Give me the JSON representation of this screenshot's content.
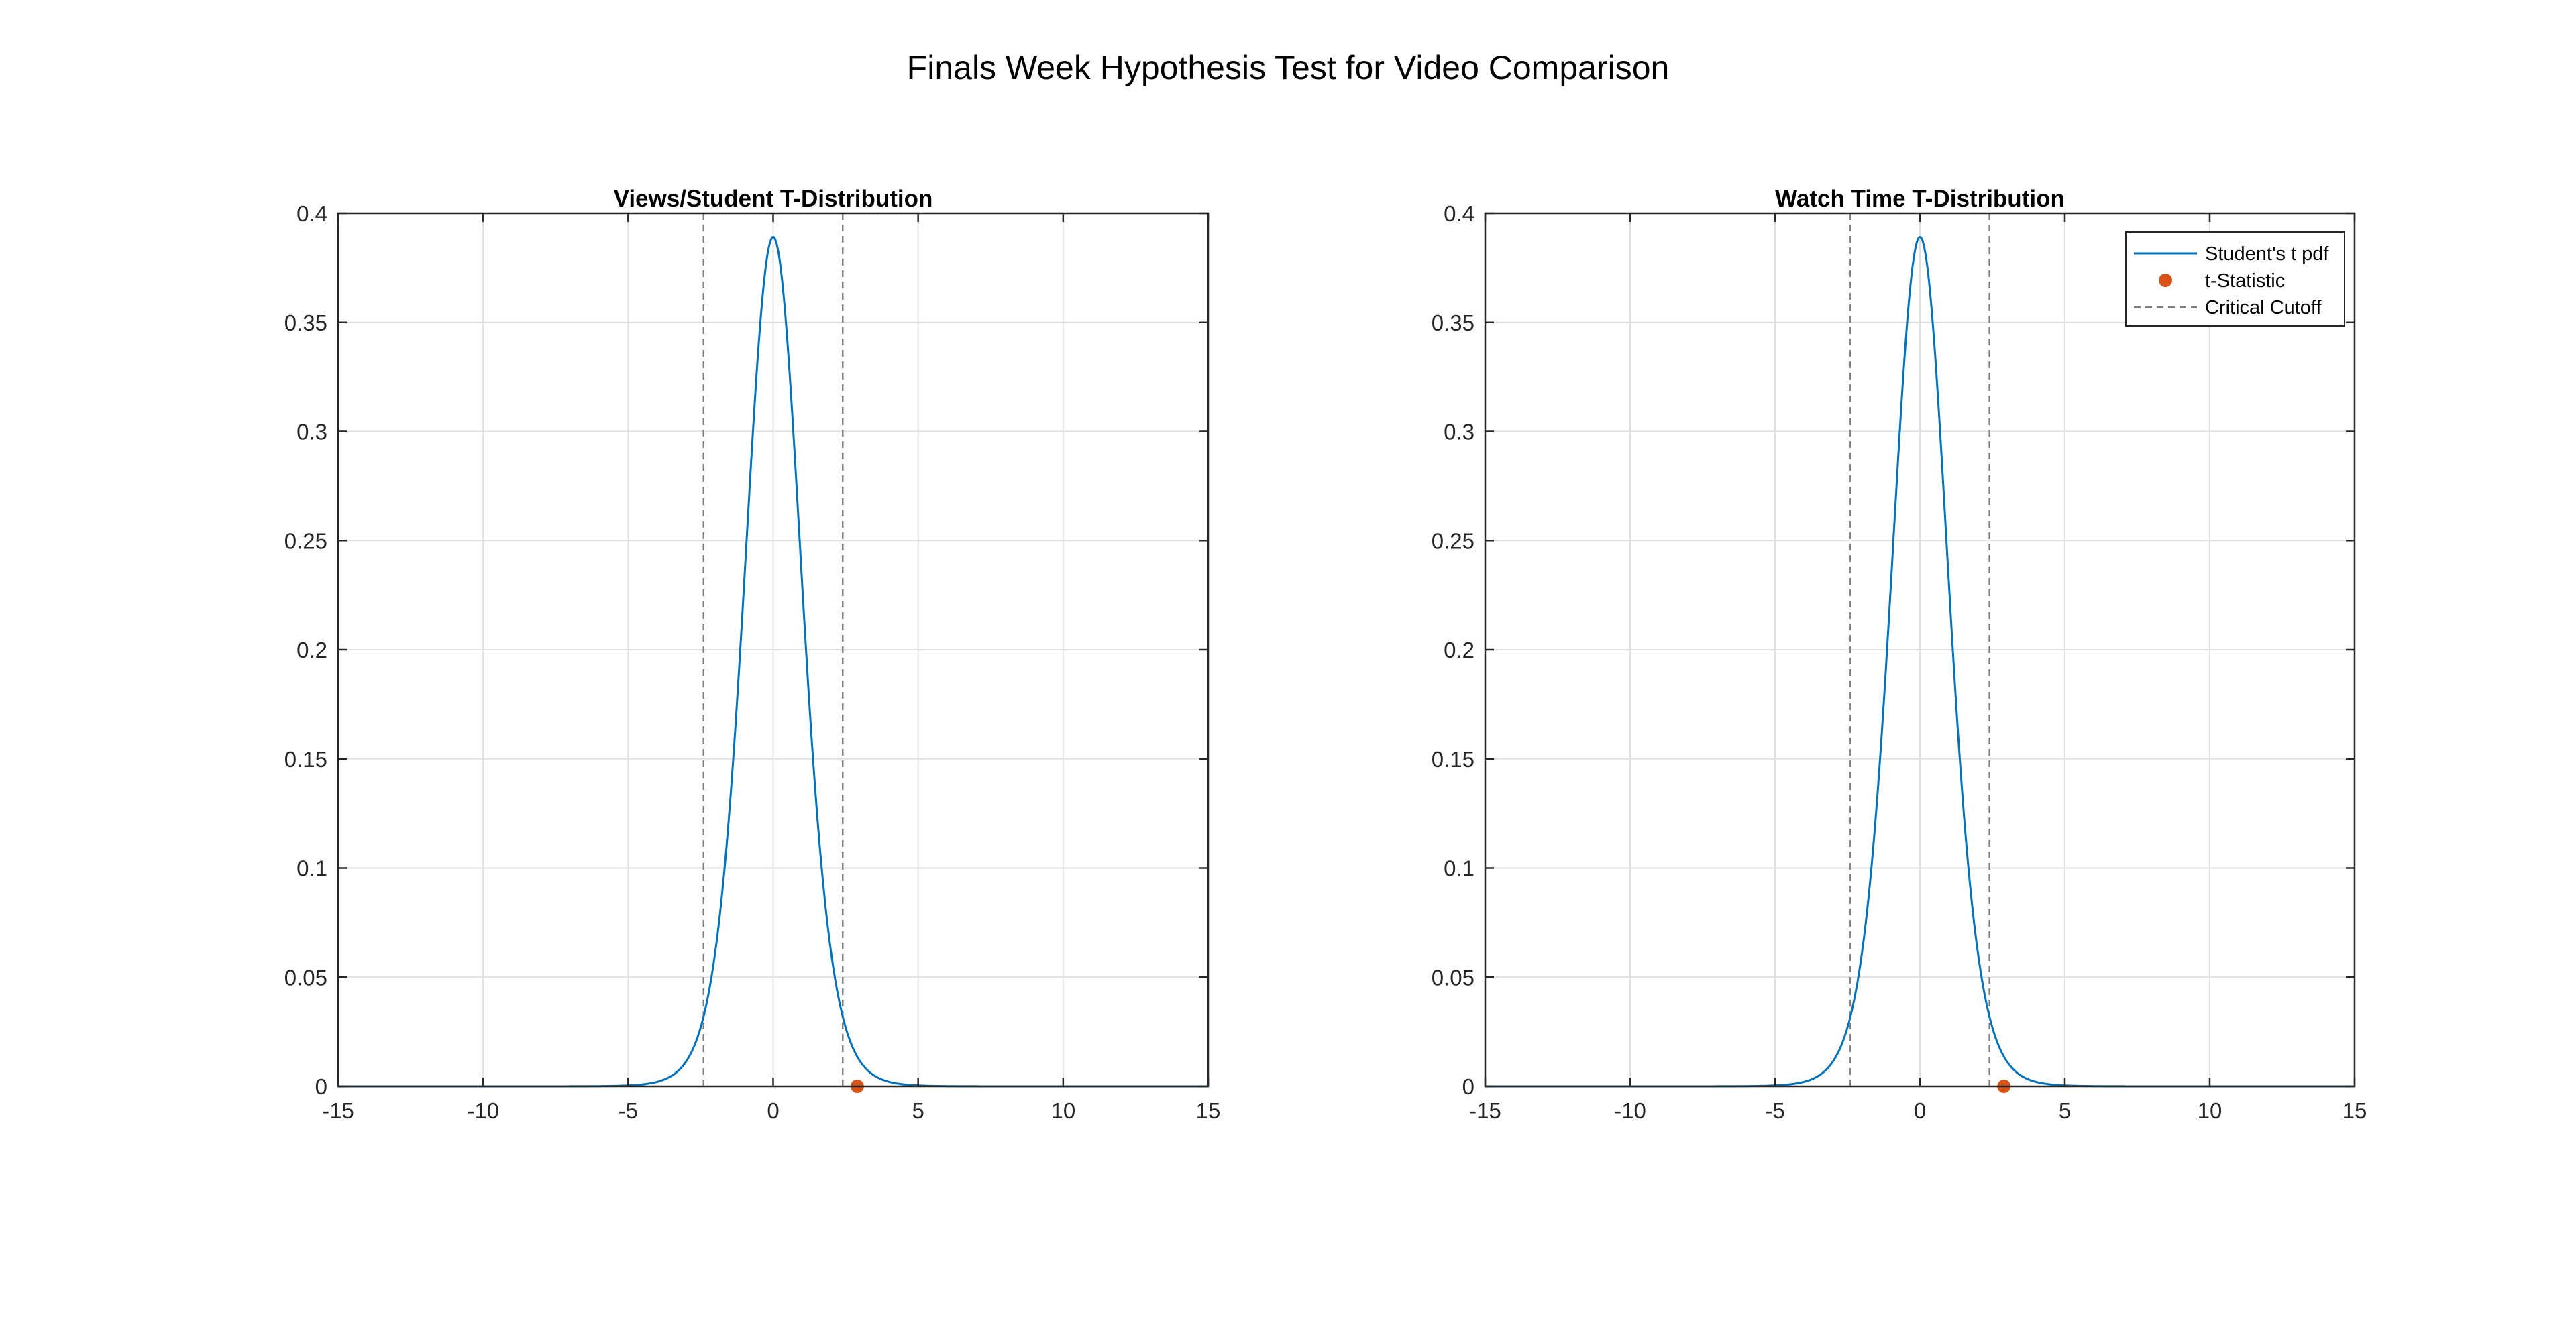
{
  "figure": {
    "title": "Finals Week Hypothesis Test for Video Comparison"
  },
  "colors": {
    "curve": "#0072BD",
    "marker": "#D95319",
    "cutoff": "#808080",
    "grid": "#DFDFDF",
    "axis": "#262626"
  },
  "chart_data": [
    {
      "type": "line",
      "title": "Views/Student T-Distribution",
      "xlabel": "",
      "ylabel": "",
      "xlim": [
        -15,
        15
      ],
      "ylim": [
        0,
        0.4
      ],
      "xticks": [
        -15,
        -10,
        -5,
        0,
        5,
        10,
        15
      ],
      "yticks": [
        0,
        0.05,
        0.1,
        0.15,
        0.2,
        0.25,
        0.3,
        0.35,
        0.4
      ],
      "ytick_labels": [
        "0",
        "0.05",
        "0.1",
        "0.15",
        "0.2",
        "0.25",
        "0.3",
        "0.35",
        "0.4"
      ],
      "grid": true,
      "legend": null,
      "series": [
        {
          "kind": "pdf",
          "distribution": "t",
          "x": [
            -15,
            -6,
            -5,
            -4,
            -3.5,
            -3,
            -2.5,
            -2,
            -1.5,
            -1,
            -0.5,
            0,
            0.5,
            1,
            1.5,
            2,
            2.5,
            3,
            3.5,
            4,
            5,
            6,
            15
          ],
          "y": [
            0,
            0.0001,
            0.0004,
            0.0019,
            0.0042,
            0.0091,
            0.0191,
            0.0508,
            0.127,
            0.2363,
            0.3485,
            0.396,
            0.3485,
            0.2363,
            0.127,
            0.0508,
            0.0191,
            0.0091,
            0.0042,
            0.0019,
            0.0004,
            0.0001,
            0
          ]
        },
        {
          "kind": "t-statistic",
          "x": [
            2.9
          ],
          "y": [
            0
          ]
        },
        {
          "kind": "critical-cutoff",
          "x": [
            -2.4,
            2.4
          ]
        }
      ]
    },
    {
      "type": "line",
      "title": "Watch Time T-Distribution",
      "xlabel": "",
      "ylabel": "",
      "xlim": [
        -15,
        15
      ],
      "ylim": [
        0,
        0.4
      ],
      "xticks": [
        -15,
        -10,
        -5,
        0,
        5,
        10,
        15
      ],
      "yticks": [
        0,
        0.05,
        0.1,
        0.15,
        0.2,
        0.25,
        0.3,
        0.35,
        0.4
      ],
      "ytick_labels": [
        "0",
        "0.05",
        "0.1",
        "0.15",
        "0.2",
        "0.25",
        "0.3",
        "0.35",
        "0.4"
      ],
      "grid": true,
      "legend": {
        "position": "top-right",
        "entries": [
          "Student's t pdf",
          "t-Statistic",
          "Critical Cutoff"
        ]
      },
      "series": [
        {
          "kind": "pdf",
          "distribution": "t",
          "x": [
            -15,
            -6,
            -5,
            -4,
            -3.5,
            -3,
            -2.5,
            -2,
            -1.5,
            -1,
            -0.5,
            0,
            0.5,
            1,
            1.5,
            2,
            2.5,
            3,
            3.5,
            4,
            5,
            6,
            15
          ],
          "y": [
            0,
            0.0001,
            0.0004,
            0.0019,
            0.0042,
            0.0091,
            0.0191,
            0.0508,
            0.127,
            0.2363,
            0.3485,
            0.396,
            0.3485,
            0.2363,
            0.127,
            0.0508,
            0.0191,
            0.0091,
            0.0042,
            0.0019,
            0.0004,
            0.0001,
            0
          ]
        },
        {
          "kind": "t-statistic",
          "x": [
            2.9
          ],
          "y": [
            0
          ]
        },
        {
          "kind": "critical-cutoff",
          "x": [
            -2.4,
            2.4
          ]
        }
      ]
    }
  ]
}
